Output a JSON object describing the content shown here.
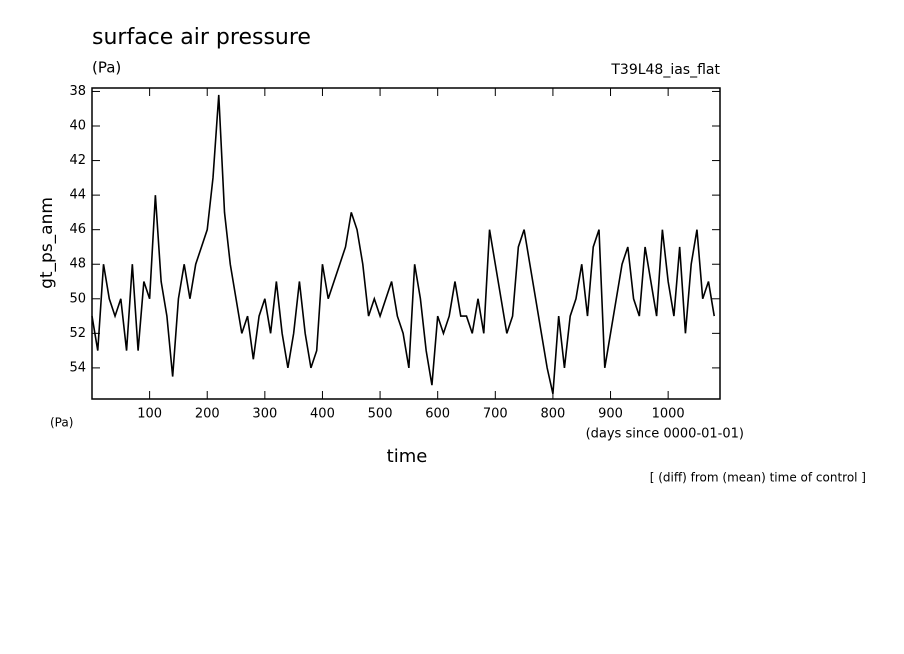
{
  "chart_data": {
    "type": "line",
    "title": "surface air pressure",
    "y_unit": "(Pa)",
    "run_label": "T39L48_ias_flat",
    "ylabel": "gt_ps_anm",
    "x_unit": "(Pa)",
    "x_units_note": "(days since 0000-01-01)",
    "xlabel": "time",
    "footnote": "[ (diff) from (mean) time of control ]",
    "x": [
      0,
      10,
      20,
      30,
      40,
      50,
      60,
      70,
      80,
      90,
      100,
      110,
      120,
      130,
      140,
      150,
      160,
      170,
      180,
      190,
      200,
      210,
      220,
      230,
      240,
      250,
      260,
      270,
      280,
      290,
      300,
      310,
      320,
      330,
      340,
      350,
      360,
      370,
      380,
      390,
      400,
      410,
      420,
      430,
      440,
      450,
      460,
      470,
      480,
      490,
      500,
      510,
      520,
      530,
      540,
      550,
      560,
      570,
      580,
      590,
      600,
      610,
      620,
      630,
      640,
      650,
      660,
      670,
      680,
      690,
      700,
      710,
      720,
      730,
      740,
      750,
      760,
      770,
      780,
      790,
      800,
      810,
      820,
      830,
      840,
      850,
      860,
      870,
      880,
      890,
      900,
      910,
      920,
      930,
      940,
      950,
      960,
      970,
      980,
      990,
      1000,
      1010,
      1020,
      1030,
      1040,
      1050,
      1060,
      1070,
      1080
    ],
    "series": [
      {
        "name": "gt_ps_anm",
        "color": "#000000",
        "values": [
          51,
          53,
          48,
          50,
          51,
          50,
          53,
          48,
          53,
          49,
          50,
          44,
          49,
          51,
          54.5,
          50,
          48,
          50,
          48,
          47,
          46,
          43,
          38.2,
          45,
          48,
          50,
          52,
          51,
          53.5,
          51,
          50,
          52,
          49,
          52,
          54,
          52,
          49,
          52,
          54,
          53,
          48,
          50,
          49,
          48,
          47,
          45,
          46,
          48,
          51,
          50,
          51,
          50,
          49,
          51,
          52,
          54,
          48,
          50,
          53,
          55,
          51,
          52,
          51,
          49,
          51,
          51,
          52,
          50,
          52,
          46,
          48,
          50,
          52,
          51,
          47,
          46,
          48,
          50,
          52,
          54,
          55.5,
          51,
          54,
          51,
          50,
          48,
          51,
          47,
          46,
          54,
          52,
          50,
          48,
          47,
          50,
          51,
          47,
          49,
          51,
          46,
          49,
          51,
          47,
          52,
          48,
          46,
          50,
          49,
          51
        ]
      }
    ],
    "xlim": [
      0,
      1090
    ],
    "ylim": [
      55.8,
      37.8
    ],
    "xticks": [
      100,
      200,
      300,
      400,
      500,
      600,
      700,
      800,
      900,
      1000
    ],
    "yticks": [
      38,
      40,
      42,
      44,
      46,
      48,
      50,
      52,
      54
    ]
  }
}
